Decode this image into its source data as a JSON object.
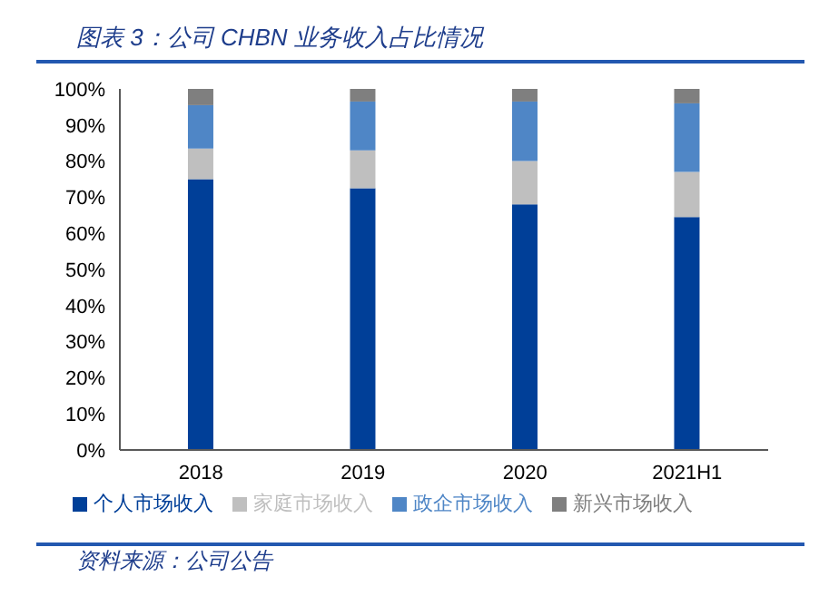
{
  "chart_data": {
    "type": "bar",
    "title": "图表 3：公司 CHBN 业务收入占比情况",
    "stacked": true,
    "categories": [
      "2018",
      "2019",
      "2020",
      "2021H1"
    ],
    "series": [
      {
        "name": "个人市场收入",
        "color": "#003f98",
        "values": [
          75,
          72.5,
          68,
          64.5
        ]
      },
      {
        "name": "家庭市场收入",
        "color": "#bfbfbf",
        "values": [
          8.5,
          10.5,
          12,
          12.5
        ]
      },
      {
        "name": "政企市场收入",
        "color": "#4f86c6",
        "values": [
          12,
          13.5,
          16.5,
          19
        ]
      },
      {
        "name": "新兴市场收入",
        "color": "#7f7f7f",
        "values": [
          4.5,
          3.5,
          3.5,
          4
        ]
      }
    ],
    "ylim": [
      0,
      100
    ],
    "yticks": [
      {
        "value": 0,
        "label": "0%"
      },
      {
        "value": 10,
        "label": "10%"
      },
      {
        "value": 20,
        "label": "20%"
      },
      {
        "value": 30,
        "label": "30%"
      },
      {
        "value": 40,
        "label": "40%"
      },
      {
        "value": 50,
        "label": "50%"
      },
      {
        "value": 60,
        "label": "60%"
      },
      {
        "value": 70,
        "label": "70%"
      },
      {
        "value": 80,
        "label": "80%"
      },
      {
        "value": 90,
        "label": "90%"
      },
      {
        "value": 100,
        "label": "100%"
      }
    ],
    "grid": false,
    "legend": "bottom",
    "annotations": [
      "资料来源：公司公告"
    ]
  }
}
